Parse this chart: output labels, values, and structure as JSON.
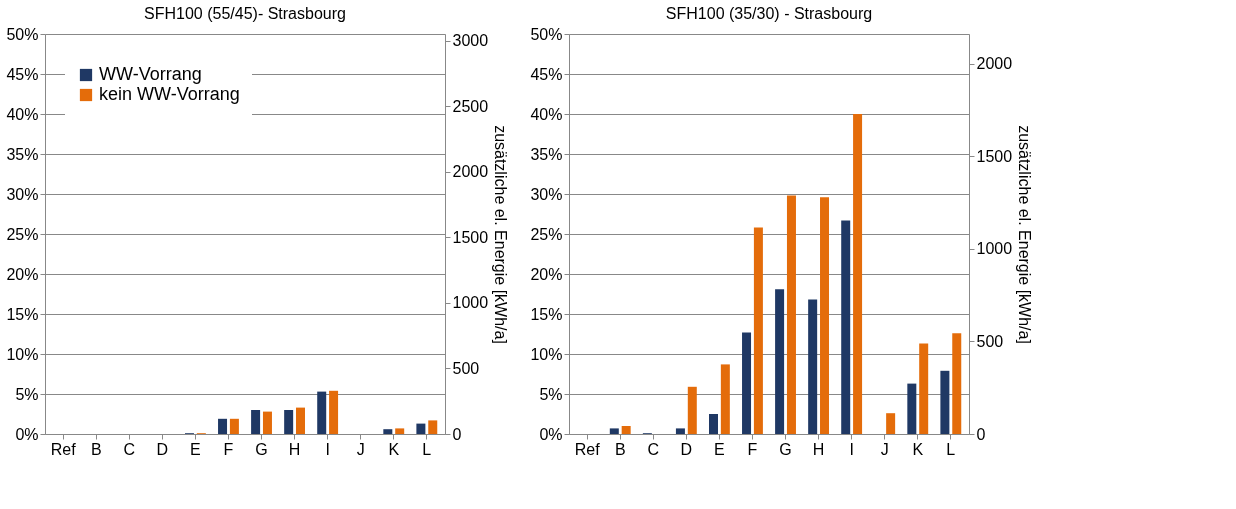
{
  "chart_data": [
    {
      "type": "bar",
      "title": "SFH100 (55/45)- Strasbourg",
      "y2label": "zusätzliche el. Energie [kWh/a]",
      "categories": [
        "Ref",
        "B",
        "C",
        "D",
        "E",
        "F",
        "G",
        "H",
        "I",
        "J",
        "K",
        "L"
      ],
      "series": [
        {
          "name": "WW-Vorrang",
          "color": "#1f3864",
          "values": [
            0,
            0,
            0,
            0,
            0.1,
            1.9,
            3.0,
            3.0,
            5.3,
            0,
            0.6,
            1.3
          ]
        },
        {
          "name": "kein WW-Vorrang",
          "color": "#e46c0a",
          "values": [
            0,
            0,
            0,
            0,
            0.1,
            1.9,
            2.8,
            3.3,
            5.4,
            0,
            0.7,
            1.7
          ]
        }
      ],
      "ylim": [
        0,
        50
      ],
      "yticks": [
        {
          "value": 0,
          "label": "0%"
        },
        {
          "value": 5,
          "label": "5%"
        },
        {
          "value": 10,
          "label": "10%"
        },
        {
          "value": 15,
          "label": "15%"
        },
        {
          "value": 20,
          "label": "20%"
        },
        {
          "value": 25,
          "label": "25%"
        },
        {
          "value": 30,
          "label": "30%"
        },
        {
          "value": 35,
          "label": "35%"
        },
        {
          "value": 40,
          "label": "40%"
        },
        {
          "value": 45,
          "label": "45%"
        },
        {
          "value": 50,
          "label": "50%"
        }
      ],
      "y2lim": [
        0,
        3050
      ],
      "y2ticks": [
        0,
        500,
        1000,
        1500,
        2000,
        2500,
        3000
      ],
      "grid": "y",
      "legend": "top left"
    },
    {
      "type": "bar",
      "title": "SFH100 (35/30) - Strasbourg",
      "y2label": "zusätzliche el. Energie [kWh/a]",
      "categories": [
        "Ref",
        "B",
        "C",
        "D",
        "E",
        "F",
        "G",
        "H",
        "I",
        "J",
        "K",
        "L"
      ],
      "series": [
        {
          "name": "WW-Vorrang",
          "color": "#1f3864",
          "values": [
            0,
            0.7,
            0.1,
            0.7,
            2.5,
            12.7,
            18.1,
            16.8,
            26.7,
            0,
            6.3,
            7.9
          ]
        },
        {
          "name": "kein WW-Vorrang",
          "color": "#e46c0a",
          "values": [
            0,
            1.0,
            0,
            5.9,
            8.7,
            25.8,
            29.8,
            29.6,
            40.0,
            2.6,
            11.3,
            12.6
          ]
        }
      ],
      "ylim": [
        0,
        50
      ],
      "yticks": [
        {
          "value": 0,
          "label": "0%"
        },
        {
          "value": 5,
          "label": "5%"
        },
        {
          "value": 10,
          "label": "10%"
        },
        {
          "value": 15,
          "label": "15%"
        },
        {
          "value": 20,
          "label": "20%"
        },
        {
          "value": 25,
          "label": "25%"
        },
        {
          "value": 30,
          "label": "30%"
        },
        {
          "value": 35,
          "label": "35%"
        },
        {
          "value": 40,
          "label": "40%"
        },
        {
          "value": 45,
          "label": "45%"
        },
        {
          "value": 50,
          "label": "50%"
        }
      ],
      "y2lim": [
        0,
        2160
      ],
      "y2ticks": [
        0,
        500,
        1000,
        1500,
        2000
      ],
      "grid": "y",
      "legend": "top left"
    }
  ]
}
